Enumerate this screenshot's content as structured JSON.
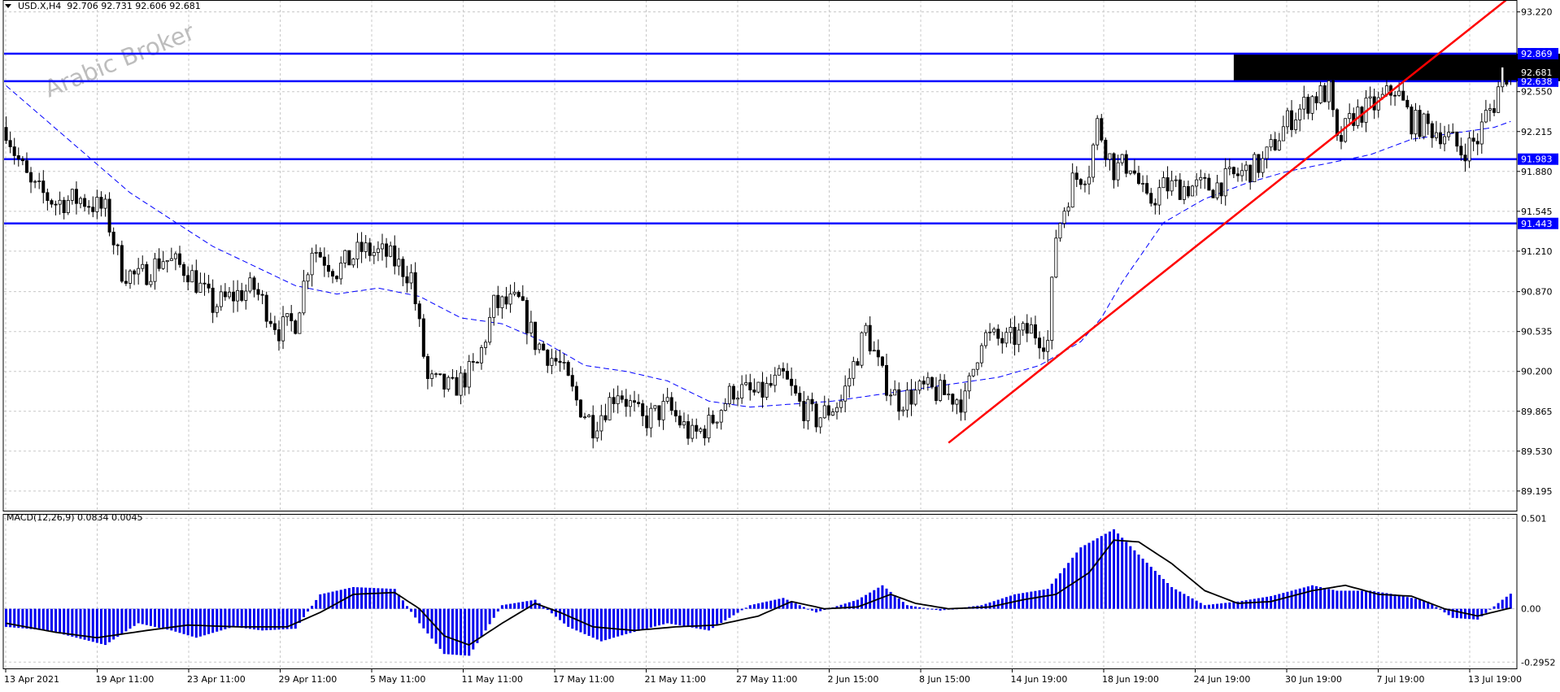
{
  "chart_data": [
    {
      "type": "candlestick",
      "symbol": "USD.X,H4",
      "ohlc": {
        "open": 92.706,
        "high": 92.731,
        "low": 92.606,
        "close": 92.681
      },
      "ylim": [
        89.03,
        93.32
      ],
      "y_ticks": [
        "93.220",
        "92.550",
        "92.215",
        "91.880",
        "91.545",
        "91.210",
        "90.870",
        "90.535",
        "90.200",
        "89.865",
        "89.530",
        "89.195"
      ],
      "x_ticks": [
        "13 Apr 2021",
        "19 Apr 11:00",
        "23 Apr 11:00",
        "29 Apr 11:00",
        "5 May 11:00",
        "11 May 11:00",
        "17 May 11:00",
        "21 May 11:00",
        "27 May 11:00",
        "2 Jun 15:00",
        "8 Jun 15:00",
        "14 Jun 19:00",
        "18 Jun 19:00",
        "24 Jun 19:00",
        "30 Jun 19:00",
        "7 Jul 19:00",
        "13 Jul 19:00"
      ],
      "close_path": [
        [
          0,
          92.25
        ],
        [
          2,
          92.05
        ],
        [
          6,
          91.75
        ],
        [
          12,
          91.62
        ],
        [
          18,
          91.65
        ],
        [
          24,
          91.55
        ],
        [
          28,
          91.05
        ],
        [
          32,
          90.98
        ],
        [
          38,
          91.15
        ],
        [
          44,
          91.05
        ],
        [
          50,
          90.75
        ],
        [
          56,
          90.85
        ],
        [
          60,
          90.9
        ],
        [
          66,
          90.55
        ],
        [
          70,
          90.62
        ],
        [
          74,
          91.25
        ],
        [
          80,
          91.05
        ],
        [
          86,
          91.22
        ],
        [
          92,
          91.18
        ],
        [
          98,
          91.0
        ],
        [
          102,
          90.12
        ],
        [
          108,
          90.05
        ],
        [
          114,
          90.25
        ],
        [
          118,
          90.75
        ],
        [
          124,
          90.78
        ],
        [
          128,
          90.45
        ],
        [
          134,
          90.25
        ],
        [
          138,
          89.95
        ],
        [
          142,
          89.75
        ],
        [
          148,
          90.05
        ],
        [
          154,
          89.78
        ],
        [
          160,
          89.9
        ],
        [
          166,
          89.65
        ],
        [
          170,
          89.75
        ],
        [
          176,
          90.05
        ],
        [
          182,
          90.0
        ],
        [
          188,
          90.15
        ],
        [
          192,
          89.92
        ],
        [
          196,
          89.8
        ],
        [
          202,
          89.95
        ],
        [
          208,
          90.55
        ],
        [
          212,
          90.15
        ],
        [
          216,
          89.95
        ],
        [
          222,
          90.05
        ],
        [
          228,
          90.0
        ],
        [
          232,
          89.95
        ],
        [
          236,
          90.5
        ],
        [
          242,
          90.45
        ],
        [
          248,
          90.55
        ],
        [
          252,
          90.45
        ],
        [
          254,
          91.35
        ],
        [
          258,
          91.8
        ],
        [
          262,
          91.9
        ],
        [
          264,
          92.28
        ],
        [
          268,
          91.9
        ],
        [
          272,
          91.95
        ],
        [
          276,
          91.6
        ],
        [
          280,
          91.75
        ],
        [
          286,
          91.75
        ],
        [
          292,
          91.75
        ],
        [
          298,
          91.85
        ],
        [
          304,
          91.95
        ],
        [
          310,
          92.3
        ],
        [
          316,
          92.5
        ],
        [
          320,
          92.55
        ],
        [
          322,
          92.1
        ],
        [
          326,
          92.35
        ],
        [
          332,
          92.45
        ],
        [
          336,
          92.58
        ],
        [
          340,
          92.3
        ],
        [
          344,
          92.25
        ],
        [
          348,
          92.2
        ],
        [
          352,
          92.05
        ],
        [
          356,
          92.15
        ],
        [
          358,
          92.35
        ],
        [
          360,
          92.45
        ],
        [
          362,
          92.72
        ],
        [
          364,
          92.681
        ]
      ],
      "moving_average": [
        [
          0,
          92.6
        ],
        [
          30,
          91.7
        ],
        [
          50,
          91.25
        ],
        [
          70,
          90.92
        ],
        [
          80,
          90.85
        ],
        [
          90,
          90.9
        ],
        [
          100,
          90.83
        ],
        [
          110,
          90.65
        ],
        [
          120,
          90.6
        ],
        [
          130,
          90.45
        ],
        [
          140,
          90.25
        ],
        [
          150,
          90.2
        ],
        [
          160,
          90.12
        ],
        [
          170,
          89.95
        ],
        [
          180,
          89.9
        ],
        [
          200,
          89.95
        ],
        [
          220,
          90.05
        ],
        [
          240,
          90.15
        ],
        [
          250,
          90.25
        ],
        [
          260,
          90.45
        ],
        [
          265,
          90.65
        ],
        [
          270,
          90.95
        ],
        [
          280,
          91.45
        ],
        [
          290,
          91.65
        ],
        [
          300,
          91.78
        ],
        [
          310,
          91.88
        ],
        [
          320,
          91.95
        ],
        [
          330,
          92.02
        ],
        [
          340,
          92.15
        ],
        [
          350,
          92.2
        ],
        [
          360,
          92.25
        ],
        [
          364,
          92.3
        ]
      ],
      "horizontal_levels": [
        {
          "value": 92.869,
          "label": "92.869"
        },
        {
          "value": 92.638,
          "label": "92.638"
        },
        {
          "value": 91.983,
          "label": "91.983"
        },
        {
          "value": 91.443,
          "label": "91.443"
        }
      ],
      "current_price_label": "92.681",
      "trendline": {
        "from": [
          228,
          89.6
        ],
        "to": [
          364,
          93.35
        ],
        "color": "#ff0000"
      },
      "resistance_zone": {
        "x0": 297,
        "x1": 396,
        "y0": 92.869,
        "y1": 92.638,
        "color": "#000000"
      }
    },
    {
      "type": "bar+line",
      "indicator": "MACD(12,26,9)",
      "values": {
        "macd": "0.0834",
        "signal": "0.0045"
      },
      "ylim": [
        -0.33,
        0.525
      ],
      "y_ticks": [
        "0.501",
        "0.00",
        "-0.2952"
      ],
      "histogram": [
        [
          0,
          -0.1
        ],
        [
          10,
          -0.12
        ],
        [
          24,
          -0.2
        ],
        [
          32,
          -0.08
        ],
        [
          40,
          -0.12
        ],
        [
          46,
          -0.16
        ],
        [
          55,
          -0.1
        ],
        [
          62,
          -0.12
        ],
        [
          70,
          -0.11
        ],
        [
          76,
          0.08
        ],
        [
          84,
          0.12
        ],
        [
          94,
          0.11
        ],
        [
          100,
          -0.08
        ],
        [
          106,
          -0.25
        ],
        [
          112,
          -0.26
        ],
        [
          120,
          0.02
        ],
        [
          128,
          0.05
        ],
        [
          136,
          -0.1
        ],
        [
          144,
          -0.18
        ],
        [
          150,
          -0.14
        ],
        [
          160,
          -0.08
        ],
        [
          170,
          -0.12
        ],
        [
          180,
          0.02
        ],
        [
          188,
          0.06
        ],
        [
          196,
          -0.02
        ],
        [
          206,
          0.05
        ],
        [
          212,
          0.13
        ],
        [
          218,
          0.02
        ],
        [
          226,
          -0.01
        ],
        [
          236,
          0.02
        ],
        [
          244,
          0.08
        ],
        [
          252,
          0.11
        ],
        [
          260,
          0.34
        ],
        [
          268,
          0.44
        ],
        [
          274,
          0.3
        ],
        [
          282,
          0.12
        ],
        [
          290,
          0.02
        ],
        [
          298,
          0.04
        ],
        [
          306,
          0.07
        ],
        [
          316,
          0.13
        ],
        [
          322,
          0.1
        ],
        [
          330,
          0.1
        ],
        [
          336,
          0.08
        ],
        [
          344,
          0.04
        ],
        [
          350,
          -0.05
        ],
        [
          356,
          -0.06
        ],
        [
          362,
          0.05
        ],
        [
          364,
          0.0834
        ]
      ],
      "signal_line": [
        [
          0,
          -0.08
        ],
        [
          12,
          -0.13
        ],
        [
          22,
          -0.16
        ],
        [
          34,
          -0.12
        ],
        [
          44,
          -0.09
        ],
        [
          56,
          -0.1
        ],
        [
          68,
          -0.1
        ],
        [
          76,
          -0.02
        ],
        [
          84,
          0.08
        ],
        [
          94,
          0.09
        ],
        [
          100,
          0.0
        ],
        [
          106,
          -0.15
        ],
        [
          112,
          -0.2
        ],
        [
          120,
          -0.08
        ],
        [
          128,
          0.03
        ],
        [
          134,
          -0.02
        ],
        [
          142,
          -0.1
        ],
        [
          152,
          -0.12
        ],
        [
          162,
          -0.1
        ],
        [
          172,
          -0.09
        ],
        [
          182,
          -0.04
        ],
        [
          190,
          0.04
        ],
        [
          198,
          0.0
        ],
        [
          206,
          0.01
        ],
        [
          214,
          0.08
        ],
        [
          220,
          0.03
        ],
        [
          228,
          0.0
        ],
        [
          238,
          0.01
        ],
        [
          246,
          0.05
        ],
        [
          254,
          0.08
        ],
        [
          262,
          0.2
        ],
        [
          268,
          0.38
        ],
        [
          274,
          0.37
        ],
        [
          282,
          0.25
        ],
        [
          290,
          0.1
        ],
        [
          298,
          0.03
        ],
        [
          306,
          0.04
        ],
        [
          316,
          0.1
        ],
        [
          324,
          0.13
        ],
        [
          332,
          0.08
        ],
        [
          340,
          0.07
        ],
        [
          348,
          0.0
        ],
        [
          356,
          -0.04
        ],
        [
          364,
          0.0045
        ]
      ]
    }
  ],
  "watermark": "Arabic Broker"
}
